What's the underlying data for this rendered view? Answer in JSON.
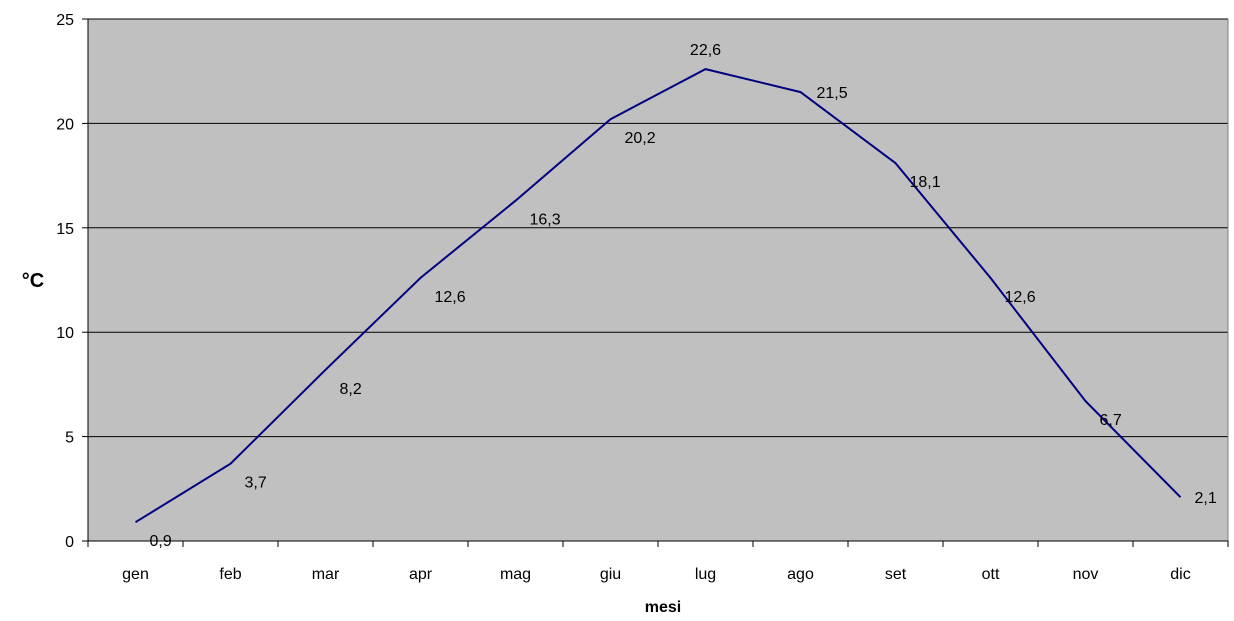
{
  "chart_data": {
    "type": "line",
    "title": "",
    "xlabel": "mesi",
    "ylabel": "°C",
    "categories": [
      "gen",
      "feb",
      "mar",
      "apr",
      "mag",
      "giu",
      "lug",
      "ago",
      "set",
      "ott",
      "nov",
      "dic"
    ],
    "values": [
      0.9,
      3.7,
      8.2,
      12.6,
      16.3,
      20.2,
      22.6,
      21.5,
      18.1,
      12.6,
      6.7,
      2.1
    ],
    "value_labels": [
      "0,9",
      "3,7",
      "8,2",
      "12,6",
      "16,3",
      "20,2",
      "22,6",
      "21,5",
      "18,1",
      "12,6",
      "6,7",
      "2,1"
    ],
    "ylim": [
      0,
      25
    ],
    "yticks": [
      0,
      5,
      10,
      15,
      20,
      25
    ],
    "grid": true,
    "legend": "none",
    "colors": {
      "plot_background": "#c0c0c0",
      "line": "#000080",
      "gridline": "#000000"
    }
  }
}
